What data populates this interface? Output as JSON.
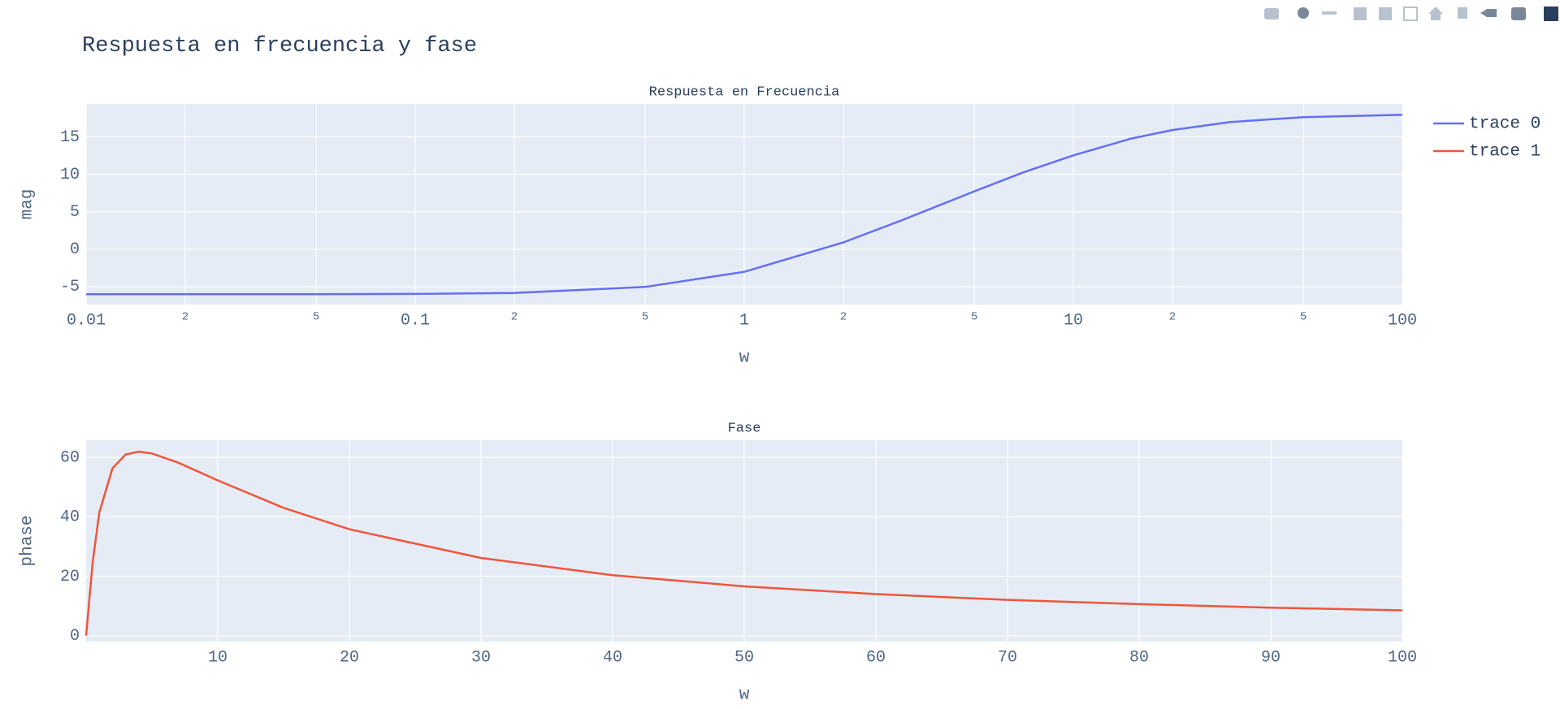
{
  "title": "Respuesta en frecuencia y fase",
  "chart_data": [
    {
      "type": "line",
      "title": "Respuesta en Frecuencia",
      "x_label": "w",
      "y_label": "mag",
      "xscale": "log",
      "grid": true,
      "x": [
        0.01,
        0.02,
        0.05,
        0.1,
        0.2,
        0.5,
        1,
        2,
        3,
        5,
        7,
        10,
        15,
        20,
        30,
        50,
        100
      ],
      "series": [
        {
          "name": "trace 0",
          "color": "#636efa",
          "values": [
            -6.02,
            -6.02,
            -6.01,
            -5.98,
            -5.85,
            -5.05,
            -3.03,
            0.9,
            3.83,
            7.72,
            10.21,
            12.53,
            14.78,
            15.92,
            16.98,
            17.64,
            17.95
          ]
        }
      ],
      "xlim": [
        0.01,
        100
      ],
      "ylim": [
        -7.4,
        19.4
      ],
      "xticks": [
        0.01,
        {
          "value": 0.02,
          "label": "2"
        },
        {
          "value": 0.05,
          "label": "5"
        },
        0.1,
        {
          "value": 0.2,
          "label": "2"
        },
        {
          "value": 0.5,
          "label": "5"
        },
        1,
        {
          "value": 2,
          "label": "2"
        },
        {
          "value": 5,
          "label": "5"
        },
        10,
        {
          "value": 20,
          "label": "2"
        },
        {
          "value": 50,
          "label": "5"
        },
        100
      ],
      "yticks": [
        -5,
        0,
        5,
        10,
        15
      ]
    },
    {
      "type": "line",
      "title": "Fase",
      "x_label": "w",
      "y_label": "phase",
      "grid": true,
      "x": [
        0,
        0.5,
        1,
        2,
        3,
        4,
        5,
        7,
        10,
        15,
        20,
        30,
        40,
        50,
        60,
        70,
        80,
        90,
        100
      ],
      "series": [
        {
          "name": "trace 1",
          "color": "#ef553b",
          "values": [
            0,
            24.78,
            41.42,
            56.31,
            60.95,
            61.93,
            61.34,
            58.24,
            52.28,
            43.04,
            35.8,
            26.16,
            20.37,
            16.59,
            13.98,
            12.05,
            10.59,
            9.44,
            8.52
          ]
        }
      ],
      "xlim": [
        0,
        100
      ],
      "ylim": [
        -2,
        65.8
      ],
      "xticks": [
        10,
        20,
        30,
        40,
        50,
        60,
        70,
        80,
        90,
        100
      ],
      "yticks": [
        0,
        20,
        40,
        60
      ]
    }
  ]
}
